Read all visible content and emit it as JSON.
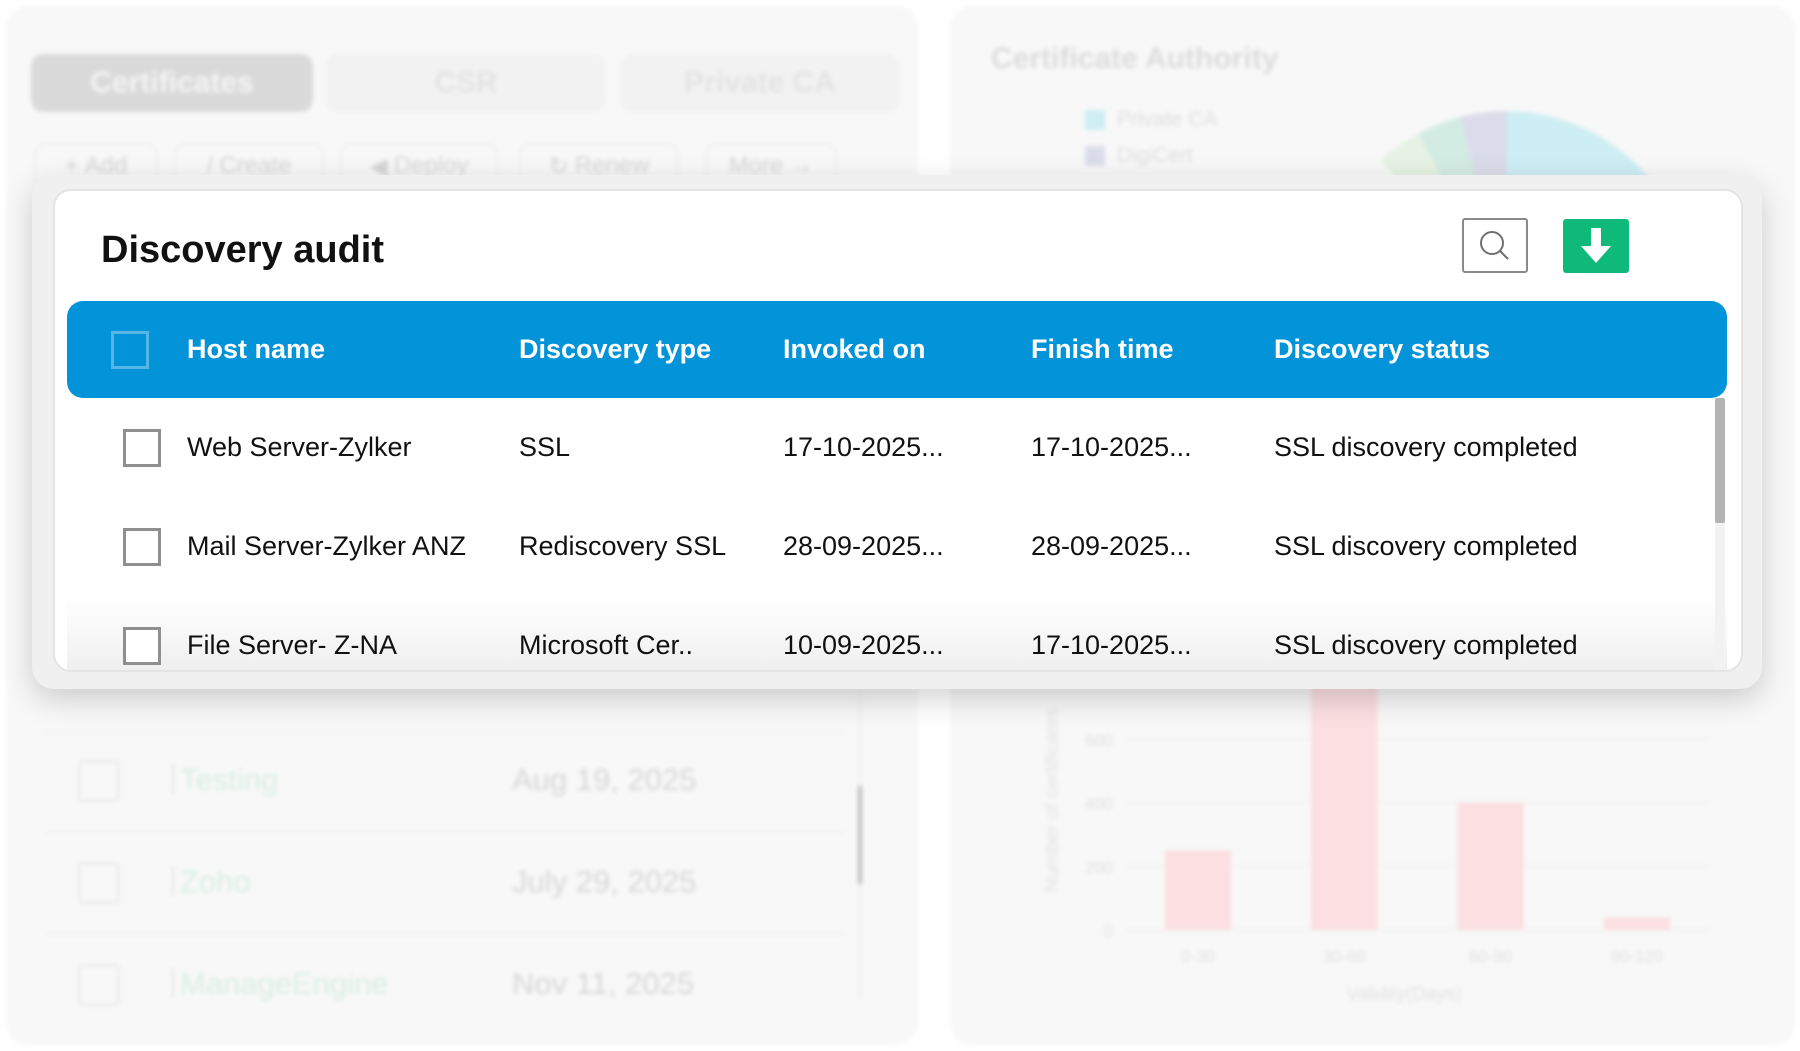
{
  "background": {
    "tabs": [
      {
        "label": "Certificates",
        "active": true
      },
      {
        "label": "CSR",
        "active": false
      },
      {
        "label": "Private CA",
        "active": false
      }
    ],
    "toolbar": [
      {
        "icon": "plus-icon",
        "glyph": "+",
        "label": "Add"
      },
      {
        "icon": "pencil-icon",
        "glyph": "/",
        "label": "Create"
      },
      {
        "icon": "send-icon",
        "glyph": "◀",
        "label": "Deploy"
      },
      {
        "icon": "refresh-icon",
        "glyph": "↻",
        "label": "Renew"
      },
      {
        "icon": "arrow-right-icon",
        "glyph": "→",
        "label": "More"
      }
    ],
    "rows": [
      {
        "name": "Testing",
        "date": "Aug 19, 2025"
      },
      {
        "name": "Zoho",
        "date": "July 29, 2025"
      },
      {
        "name": "ManageEngine",
        "date": "Nov 11, 2025"
      }
    ],
    "ca_panel": {
      "title": "Certificate Authority",
      "legend": [
        {
          "label": "Private CA",
          "color": "#cdeef4"
        },
        {
          "label": "DigiCert",
          "color": "#dadde9"
        }
      ]
    }
  },
  "chart_data": {
    "type": "bar",
    "categories": [
      "0-30",
      "30-60",
      "60-90",
      "90-120"
    ],
    "values": [
      250,
      780,
      400,
      40
    ],
    "xlabel": "Validity(Days)",
    "ylabel": "Number of certificates",
    "yticks": [
      "0",
      "200",
      "400",
      "600"
    ],
    "ylim": [
      0,
      800
    ],
    "bar_color": "#fbdfe1",
    "grid": true
  },
  "modal": {
    "title": "Discovery audit",
    "search_icon": "search-icon",
    "download_icon": "download-icon",
    "colors": {
      "header": "#0293d8",
      "download": "#0fb97a"
    },
    "columns": [
      "Host name",
      "Discovery type",
      "Invoked on",
      "Finish time",
      "Discovery status"
    ],
    "rows": [
      {
        "host": "Web Server-Zylker",
        "type": "SSL",
        "invoked": "17-10-2025...",
        "finish": "17-10-2025...",
        "status": "SSL discovery completed"
      },
      {
        "host": "Mail Server-Zylker ANZ",
        "type": "Rediscovery SSL",
        "invoked": "28-09-2025...",
        "finish": "28-09-2025...",
        "status": "SSL discovery completed"
      },
      {
        "host": "File Server- Z-NA",
        "type": "Microsoft Cer..",
        "invoked": "10-09-2025...",
        "finish": "17-10-2025...",
        "status": "SSL discovery completed"
      }
    ]
  }
}
